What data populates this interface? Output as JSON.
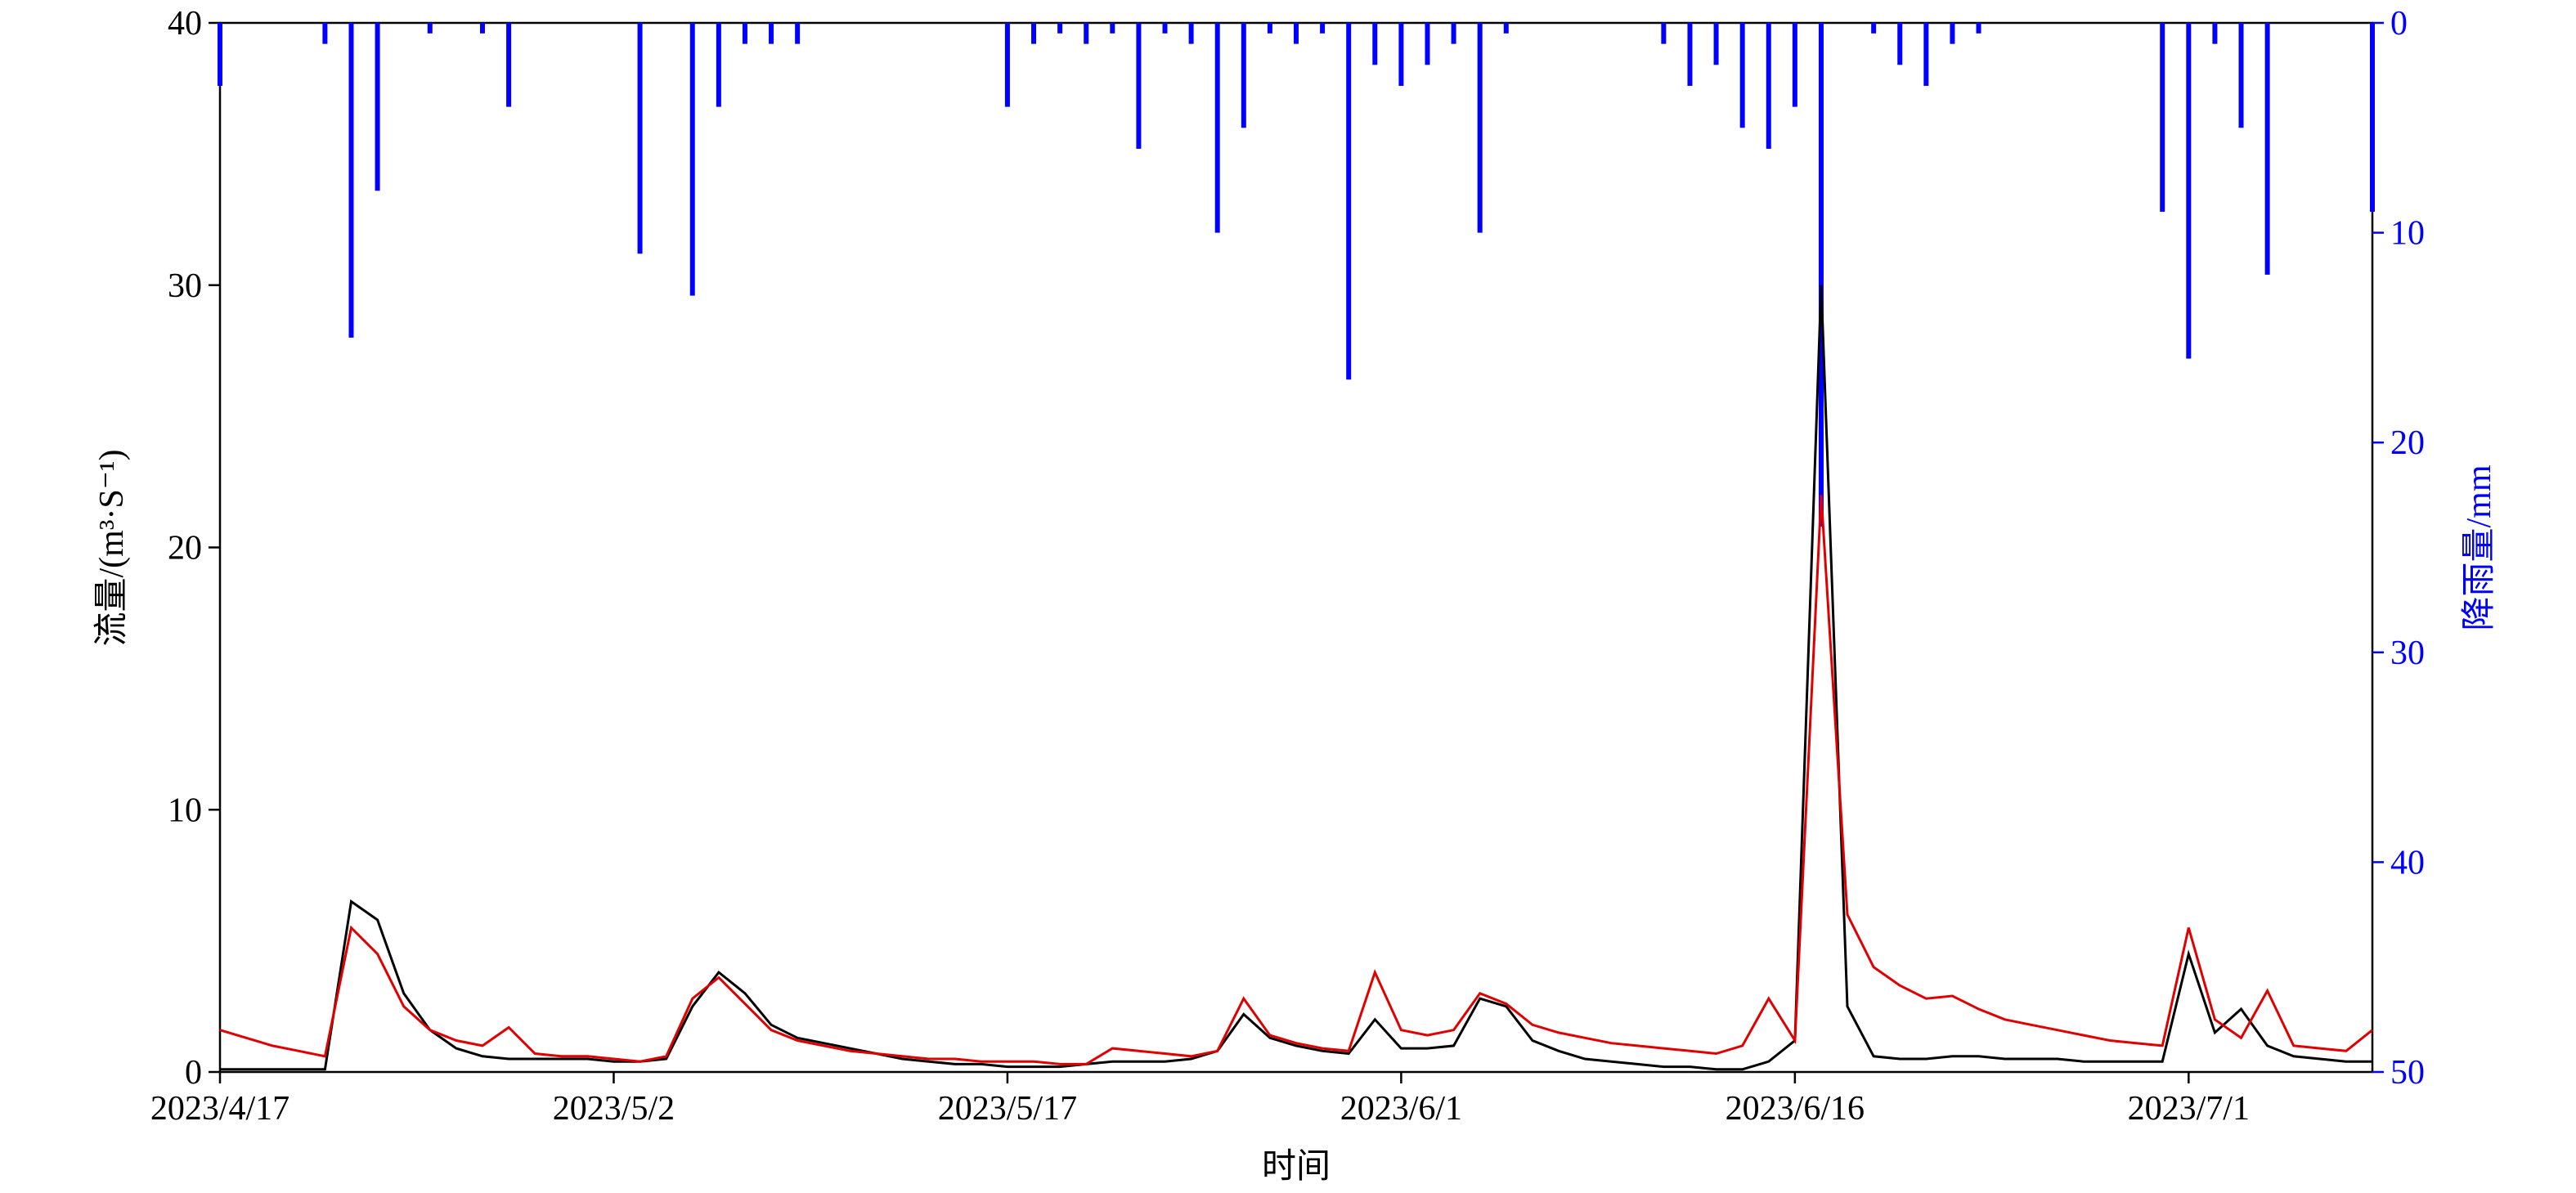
{
  "chart_data": {
    "type": "line",
    "xlabel": "时间",
    "ylabel": "流量/(m³·S⁻¹)",
    "y2label": "降雨量/mm",
    "x": [
      "2023/4/17",
      "2023/4/18",
      "2023/4/19",
      "2023/4/20",
      "2023/4/21",
      "2023/4/22",
      "2023/4/23",
      "2023/4/24",
      "2023/4/25",
      "2023/4/26",
      "2023/4/27",
      "2023/4/28",
      "2023/4/29",
      "2023/4/30",
      "2023/5/1",
      "2023/5/2",
      "2023/5/3",
      "2023/5/4",
      "2023/5/5",
      "2023/5/6",
      "2023/5/7",
      "2023/5/8",
      "2023/5/9",
      "2023/5/10",
      "2023/5/11",
      "2023/5/12",
      "2023/5/13",
      "2023/5/14",
      "2023/5/15",
      "2023/5/16",
      "2023/5/17",
      "2023/5/18",
      "2023/5/19",
      "2023/5/20",
      "2023/5/21",
      "2023/5/22",
      "2023/5/23",
      "2023/5/24",
      "2023/5/25",
      "2023/5/26",
      "2023/5/27",
      "2023/5/28",
      "2023/5/29",
      "2023/5/30",
      "2023/5/31",
      "2023/6/1",
      "2023/6/2",
      "2023/6/3",
      "2023/6/4",
      "2023/6/5",
      "2023/6/6",
      "2023/6/7",
      "2023/6/8",
      "2023/6/9",
      "2023/6/10",
      "2023/6/11",
      "2023/6/12",
      "2023/6/13",
      "2023/6/14",
      "2023/6/15",
      "2023/6/16",
      "2023/6/17",
      "2023/6/18",
      "2023/6/19",
      "2023/6/20",
      "2023/6/21",
      "2023/6/22",
      "2023/6/23",
      "2023/6/24",
      "2023/6/25",
      "2023/6/26",
      "2023/6/27",
      "2023/6/28",
      "2023/6/29",
      "2023/6/30",
      "2023/7/1",
      "2023/7/2",
      "2023/7/3",
      "2023/7/4",
      "2023/7/5",
      "2023/7/6",
      "2023/7/7",
      "2023/7/8"
    ],
    "xlim": [
      "2023/4/17",
      "2023/7/8"
    ],
    "xticks": [
      "2023/4/17",
      "2023/5/2",
      "2023/5/17",
      "2023/6/1",
      "2023/6/16",
      "2023/7/1"
    ],
    "ylim": [
      0,
      40
    ],
    "yticks": [
      0,
      10,
      20,
      30,
      40
    ],
    "y2lim": [
      0,
      50
    ],
    "y2ticks": [
      0,
      10,
      20,
      30,
      40,
      50
    ],
    "y2_inverted": true,
    "series": [
      {
        "type": "bar",
        "axis": "y2",
        "color": "#0000ff",
        "values": [
          3,
          0,
          0,
          0,
          1,
          15,
          8,
          0,
          0.5,
          0,
          0.5,
          4,
          0,
          0,
          0,
          0,
          11,
          0,
          13,
          4,
          1,
          1,
          1,
          0,
          0,
          0,
          0,
          0,
          0,
          0,
          4,
          1,
          0.5,
          1,
          0.5,
          6,
          0.5,
          1,
          10,
          5,
          0.5,
          1,
          0.5,
          17,
          2,
          3,
          2,
          1,
          10,
          0.5,
          0,
          0,
          0,
          0,
          0,
          1,
          3,
          2,
          5,
          6,
          4,
          24,
          0,
          0.5,
          2,
          3,
          1,
          0.5,
          0,
          0,
          0,
          0,
          0,
          0,
          9,
          16,
          1,
          5,
          12,
          0,
          0,
          0,
          9
        ]
      },
      {
        "type": "line",
        "color": "#000000",
        "values": [
          0.1,
          0.1,
          0.1,
          0.1,
          0.1,
          6.5,
          5.8,
          3.0,
          1.6,
          0.9,
          0.6,
          0.5,
          0.5,
          0.5,
          0.5,
          0.4,
          0.4,
          0.5,
          2.5,
          3.8,
          3.0,
          1.8,
          1.3,
          1.1,
          0.9,
          0.7,
          0.5,
          0.4,
          0.3,
          0.3,
          0.2,
          0.2,
          0.2,
          0.3,
          0.4,
          0.4,
          0.4,
          0.5,
          0.8,
          2.2,
          1.3,
          1.0,
          0.8,
          0.7,
          2.0,
          0.9,
          0.9,
          1.0,
          2.8,
          2.5,
          1.2,
          0.8,
          0.5,
          0.4,
          0.3,
          0.2,
          0.2,
          0.1,
          0.1,
          0.4,
          1.2,
          30,
          2.5,
          0.6,
          0.5,
          0.5,
          0.6,
          0.6,
          0.5,
          0.5,
          0.5,
          0.4,
          0.4,
          0.4,
          0.4,
          4.5,
          1.5,
          2.4,
          1.0,
          0.6,
          0.5,
          0.4,
          0.4
        ]
      },
      {
        "type": "line",
        "color": "#e00000",
        "values": [
          1.6,
          1.3,
          1.0,
          0.8,
          0.6,
          5.5,
          4.5,
          2.5,
          1.6,
          1.2,
          1.0,
          1.7,
          0.7,
          0.6,
          0.6,
          0.5,
          0.4,
          0.6,
          2.8,
          3.6,
          2.6,
          1.6,
          1.2,
          1.0,
          0.8,
          0.7,
          0.6,
          0.5,
          0.5,
          0.4,
          0.4,
          0.4,
          0.3,
          0.3,
          0.9,
          0.8,
          0.7,
          0.6,
          0.8,
          2.8,
          1.4,
          1.1,
          0.9,
          0.8,
          3.8,
          1.6,
          1.4,
          1.6,
          3.0,
          2.6,
          1.8,
          1.5,
          1.3,
          1.1,
          1.0,
          0.9,
          0.8,
          0.7,
          1.0,
          2.8,
          1.2,
          22,
          6.0,
          4.0,
          3.3,
          2.8,
          2.9,
          2.4,
          2.0,
          1.8,
          1.6,
          1.4,
          1.2,
          1.1,
          1.0,
          5.5,
          2.0,
          1.3,
          3.1,
          1.0,
          0.9,
          0.8,
          1.6
        ]
      }
    ]
  }
}
